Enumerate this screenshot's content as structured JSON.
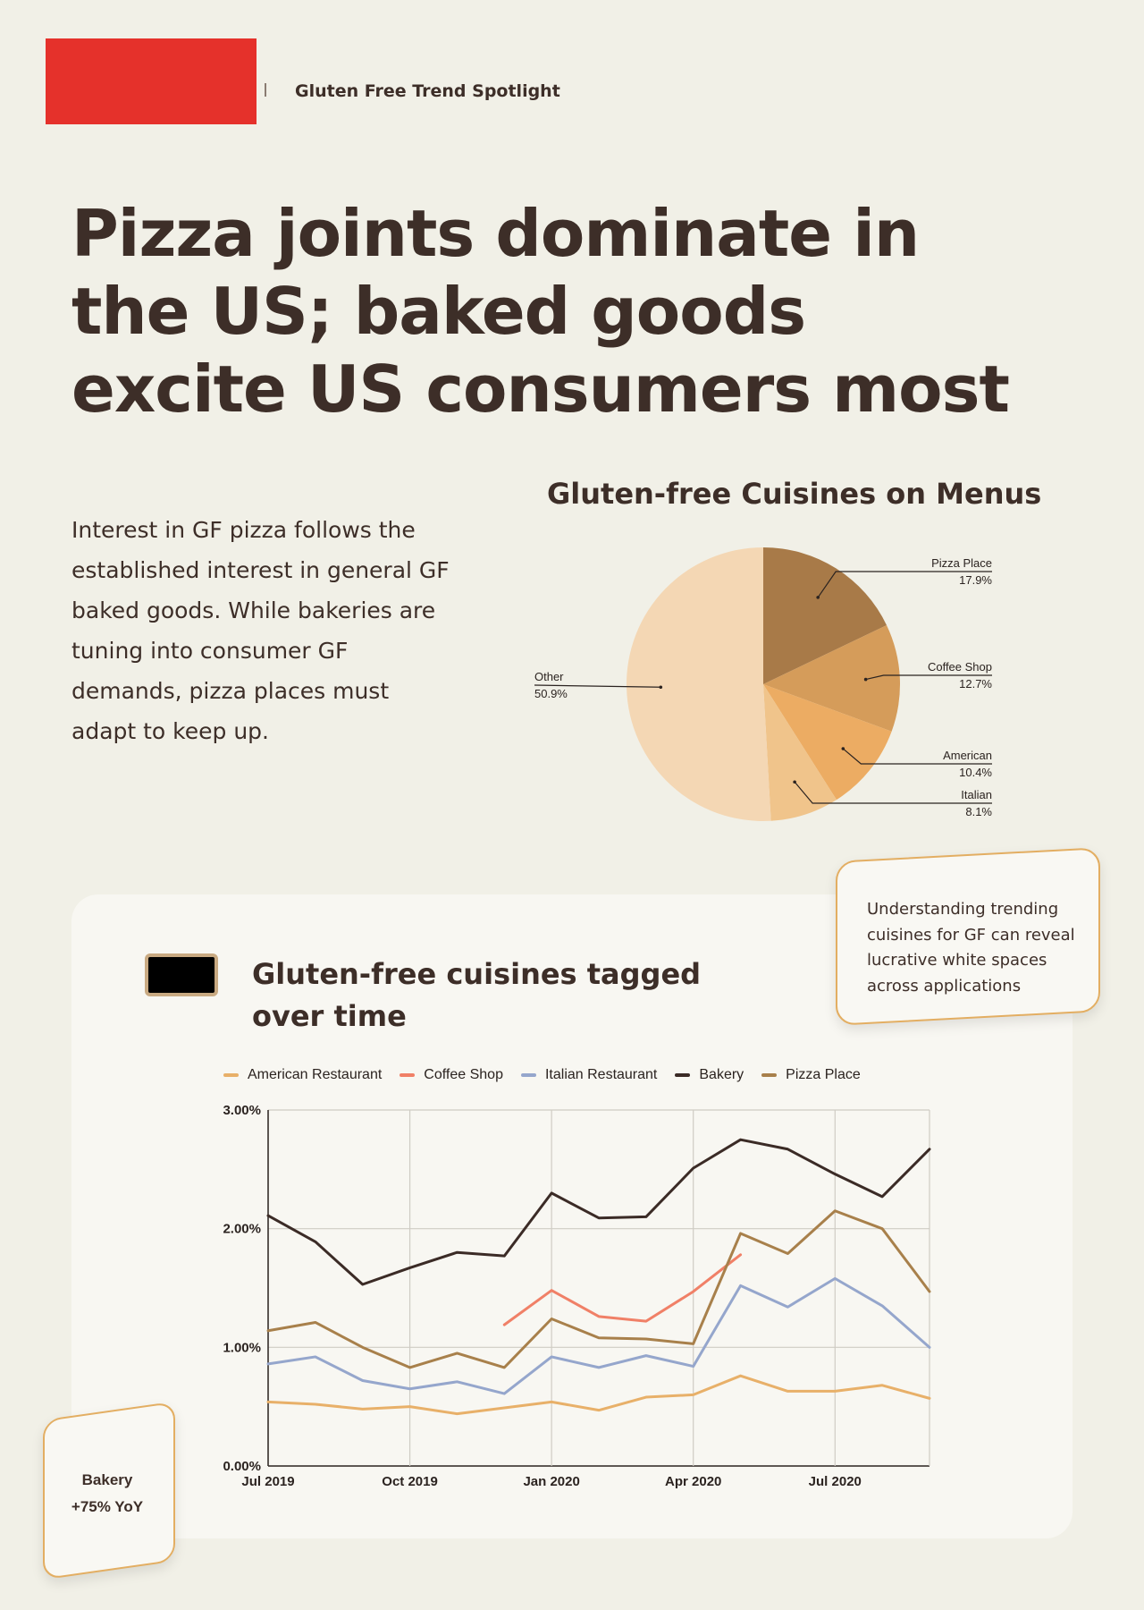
{
  "header": {
    "title": "Gluten Free Trend Spotlight"
  },
  "headline": "Pizza joints dominate in the US; baked goods excite US consumers most",
  "intro": "Interest in GF pizza follows the established interest in general GF baked goods. While bakeries are tuning into consumer GF demands, pizza places must adapt to keep up.",
  "colors": {
    "accent_red": "#e5312b",
    "background": "#f1f0e7",
    "text": "#3d2e28",
    "callout_border": "#e3ae62"
  },
  "callout": {
    "text": "Understanding trending cuisines for GF can reveal lucrative white spaces across applications"
  },
  "yoy_badge": {
    "label": "Bakery",
    "value": "+75% YoY"
  },
  "chart_data": [
    {
      "type": "pie",
      "title": "Gluten-free Cuisines on Menus",
      "slices": [
        {
          "label": "Pizza Place",
          "value": 17.9,
          "display": "17.9%",
          "color": "#a87a48"
        },
        {
          "label": "Coffee Shop",
          "value": 12.7,
          "display": "12.7%",
          "color": "#d59c5a"
        },
        {
          "label": "American",
          "value": 10.4,
          "display": "10.4%",
          "color": "#ecac63"
        },
        {
          "label": "Italian",
          "value": 8.1,
          "display": "8.1%",
          "color": "#f0c48b"
        },
        {
          "label": "Other",
          "value": 50.9,
          "display": "50.9%",
          "color": "#f4d7b4"
        }
      ]
    },
    {
      "type": "line",
      "title": "Gluten-free cuisines tagged over time",
      "x": [
        "2019-07",
        "2019-08",
        "2019-09",
        "2019-10",
        "2019-11",
        "2019-12",
        "2020-01",
        "2020-02",
        "2020-03",
        "2020-04",
        "2020-05",
        "2020-06",
        "2020-07",
        "2020-08",
        "2020-09"
      ],
      "x_tick_labels": [
        "Jul 2019",
        "Oct 2019",
        "Jan 2020",
        "Apr 2020",
        "Jul 2020"
      ],
      "x_tick_positions": [
        "2019-07",
        "2019-10",
        "2020-01",
        "2020-04",
        "2020-07"
      ],
      "y_tick_labels": [
        "0.00%",
        "1.00%",
        "2.00%",
        "3.00%"
      ],
      "ylim": [
        0,
        3
      ],
      "y_unit": "%",
      "grid": true,
      "legend_position": "top",
      "series": [
        {
          "name": "American Restaurant",
          "color": "#e8b069",
          "points": [
            [
              "2019-07",
              0.54
            ],
            [
              "2019-08",
              0.52
            ],
            [
              "2019-09",
              0.48
            ],
            [
              "2019-10",
              0.5
            ],
            [
              "2019-11",
              0.44
            ],
            [
              "2019-12",
              0.49
            ],
            [
              "2020-01",
              0.54
            ],
            [
              "2020-02",
              0.47
            ],
            [
              "2020-03",
              0.58
            ],
            [
              "2020-04",
              0.6
            ],
            [
              "2020-05",
              0.76
            ],
            [
              "2020-06",
              0.63
            ],
            [
              "2020-07",
              0.63
            ],
            [
              "2020-08",
              0.68
            ],
            [
              "2020-09",
              0.57
            ]
          ]
        },
        {
          "name": "Coffee Shop",
          "color": "#f08067",
          "points": [
            [
              "2019-12",
              1.19
            ],
            [
              "2020-01",
              1.48
            ],
            [
              "2020-02",
              1.26
            ],
            [
              "2020-03",
              1.22
            ],
            [
              "2020-04",
              1.47
            ],
            [
              "2020-05",
              1.78
            ]
          ]
        },
        {
          "name": "Italian Restaurant",
          "color": "#95a6cc",
          "points": [
            [
              "2019-07",
              0.86
            ],
            [
              "2019-08",
              0.92
            ],
            [
              "2019-09",
              0.72
            ],
            [
              "2019-10",
              0.65
            ],
            [
              "2019-11",
              0.71
            ],
            [
              "2019-12",
              0.61
            ],
            [
              "2020-01",
              0.92
            ],
            [
              "2020-02",
              0.83
            ],
            [
              "2020-03",
              0.93
            ],
            [
              "2020-04",
              0.84
            ],
            [
              "2020-05",
              1.52
            ],
            [
              "2020-06",
              1.34
            ],
            [
              "2020-07",
              1.58
            ],
            [
              "2020-08",
              1.35
            ],
            [
              "2020-09",
              1.0
            ]
          ]
        },
        {
          "name": "Bakery",
          "color": "#3b2b26",
          "points": [
            [
              "2019-07",
              2.11
            ],
            [
              "2019-08",
              1.89
            ],
            [
              "2019-09",
              1.53
            ],
            [
              "2019-10",
              1.67
            ],
            [
              "2019-11",
              1.8
            ],
            [
              "2019-12",
              1.77
            ],
            [
              "2020-01",
              2.3
            ],
            [
              "2020-02",
              2.09
            ],
            [
              "2020-03",
              2.1
            ],
            [
              "2020-04",
              2.51
            ],
            [
              "2020-05",
              2.75
            ],
            [
              "2020-06",
              2.67
            ],
            [
              "2020-07",
              2.46
            ],
            [
              "2020-08",
              2.27
            ],
            [
              "2020-09",
              2.67
            ]
          ]
        },
        {
          "name": "Pizza Place",
          "color": "#a8804b",
          "points": [
            [
              "2019-07",
              1.14
            ],
            [
              "2019-08",
              1.21
            ],
            [
              "2019-09",
              1.0
            ],
            [
              "2019-10",
              0.83
            ],
            [
              "2019-11",
              0.95
            ],
            [
              "2019-12",
              0.83
            ],
            [
              "2020-01",
              1.24
            ],
            [
              "2020-02",
              1.08
            ],
            [
              "2020-03",
              1.07
            ],
            [
              "2020-04",
              1.03
            ],
            [
              "2020-05",
              1.96
            ],
            [
              "2020-06",
              1.79
            ],
            [
              "2020-07",
              2.15
            ],
            [
              "2020-08",
              2.0
            ],
            [
              "2020-09",
              1.47
            ]
          ]
        }
      ]
    }
  ]
}
